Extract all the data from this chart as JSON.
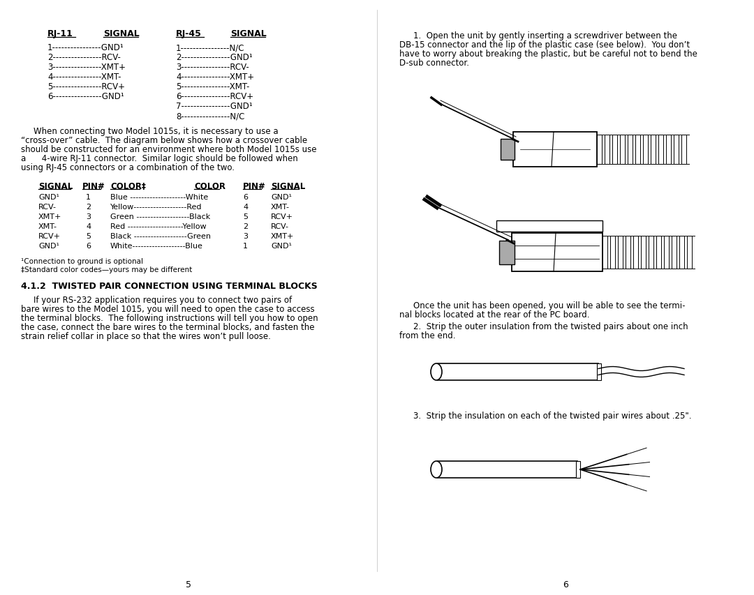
{
  "bg_color": "#ffffff",
  "text_color": "#000000",
  "page_width": 10.8,
  "page_height": 8.54,
  "left_page": {
    "rj11_header": "RJ-11",
    "rj11_signal_header": "SIGNAL",
    "rj11_rows": [
      [
        "1",
        "GND¹"
      ],
      [
        "2",
        "RCV-"
      ],
      [
        "3",
        "XMT+"
      ],
      [
        "4",
        "XMT-"
      ],
      [
        "5",
        "RCV+"
      ],
      [
        "6",
        "GND¹"
      ]
    ],
    "rj45_header": "RJ-45",
    "rj45_signal_header": "SIGNAL",
    "rj45_rows": [
      [
        "1",
        "N/C"
      ],
      [
        "2",
        "GND¹"
      ],
      [
        "3",
        "RCV-"
      ],
      [
        "4",
        "XMT+"
      ],
      [
        "5",
        "XMT-"
      ],
      [
        "6",
        "RCV+"
      ],
      [
        "7",
        "GND¹"
      ],
      [
        "8",
        "N/C"
      ]
    ],
    "table_headers": [
      "SIGNAL",
      "PIN#",
      "COLOR‡",
      "COLOR",
      "PIN#",
      "SIGNAL"
    ],
    "table_rows": [
      [
        "GND¹",
        "1",
        "Blue --------------------White",
        "6",
        "GND¹"
      ],
      [
        "RCV-",
        "2",
        "Yellow-------------------Red",
        "4",
        "XMT-"
      ],
      [
        "XMT+",
        "3",
        "Green -------------------Black",
        "5",
        "RCV+"
      ],
      [
        "XMT-",
        "4",
        "Red --------------------Yellow",
        "2",
        "RCV-"
      ],
      [
        "RCV+",
        "5",
        "Black -------------------Green",
        "3",
        "XMT+"
      ],
      [
        "GND¹",
        "6",
        "White-------------------Blue",
        "1",
        "GND¹"
      ]
    ],
    "footnote1": "¹Connection to ground is optional",
    "footnote2": "‡Standard color codes—yours may be different",
    "section_header": "4.1.2  TWISTED PAIR CONNECTION USING TERMINAL BLOCKS",
    "section_para_lines": [
      "If your RS-232 application requires you to connect two pairs of",
      "bare wires to the Model 1015, you will need to open the case to access",
      "the terminal blocks.  The following instructions will tell you how to open",
      "the case, connect the bare wires to the terminal blocks, and fasten the",
      "strain relief collar in place so that the wires won’t pull loose."
    ],
    "crossover_lines": [
      "When connecting two Model 1015s, it is necessary to use a",
      "“cross-over” cable.  The diagram below shows how a crossover cable",
      "should be constructed for an environment where both Model 1015s use",
      "a      4-wire RJ-11 connector.  Similar logic should be followed when",
      "using RJ-45 connectors or a combination of the two."
    ],
    "page_num": "5"
  },
  "right_page": {
    "para1_lines": [
      "1.  Open the unit by gently inserting a screwdriver between the",
      "DB-15 connector and the lip of the plastic case (see below).  You don’t",
      "have to worry about breaking the plastic, but be careful not to bend the",
      "D-sub connector."
    ],
    "para2_lines": [
      "Once the unit has been opened, you will be able to see the termi-",
      "nal blocks located at the rear of the PC board."
    ],
    "para3_lines": [
      "2.  Strip the outer insulation from the twisted pairs about one inch",
      "from the end."
    ],
    "para4": "3.  Strip the insulation on each of the twisted pair wires about .25\".",
    "page_num": "6"
  }
}
